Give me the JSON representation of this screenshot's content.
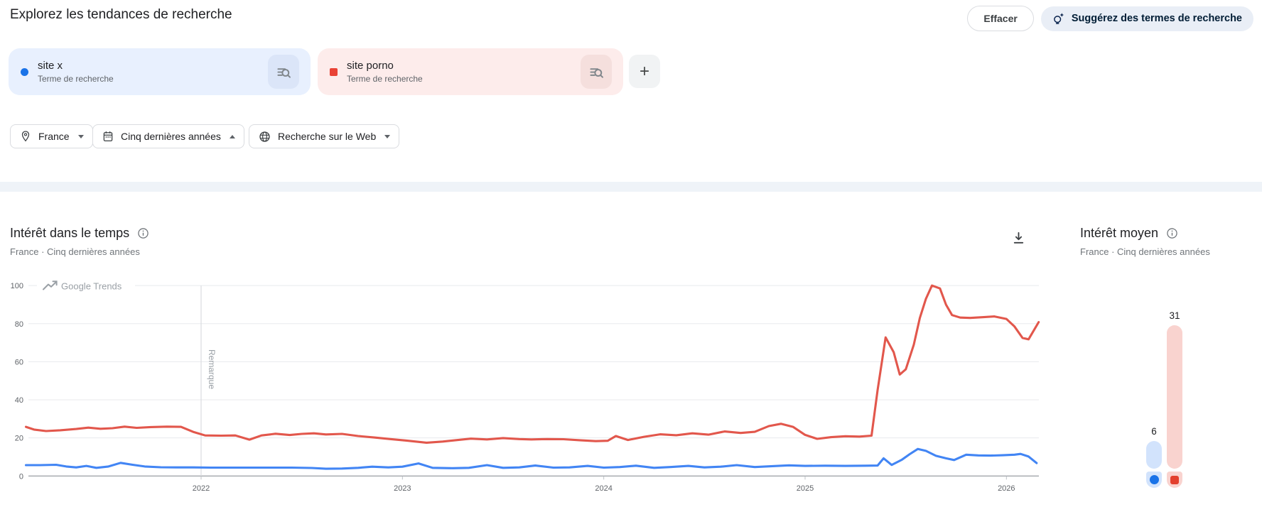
{
  "header": {
    "title": "Explorez les tendances de recherche",
    "clear_label": "Effacer",
    "suggest_label": "Suggérez des termes de recherche"
  },
  "terms": [
    {
      "label": "site x",
      "sublabel": "Terme de recherche",
      "marker_shape": "circle",
      "marker_color": "#1a73e8",
      "chip_bg": "#e8f0fe",
      "iconbox_bg": "#dbe5f8"
    },
    {
      "label": "site porno",
      "sublabel": "Terme de recherche",
      "marker_shape": "square",
      "marker_color": "#e94235",
      "chip_bg": "#fdeceb",
      "iconbox_bg": "#f5dfdd"
    }
  ],
  "add_term": {
    "label": "+"
  },
  "filters": [
    {
      "label": "France",
      "icon": "location-pin-icon",
      "arrow": "down"
    },
    {
      "label": "Cinq dernières années",
      "icon": "calendar-icon",
      "arrow": "up"
    },
    {
      "label": "Recherche sur le Web",
      "icon": "globe-icon",
      "arrow": "down"
    }
  ],
  "interest_over_time": {
    "title": "Intérêt dans le temps",
    "subtitle": "France · Cinq dernières années"
  },
  "average_interest": {
    "title": "Intérêt moyen",
    "subtitle": "France · Cinq dernières années",
    "bars": [
      {
        "term": "site x",
        "label": "6",
        "value": 6,
        "bar_color": "#d2e3fc",
        "marker_color": "#1a73e8",
        "marker_shape": "circle"
      },
      {
        "term": "site porno",
        "label": "31",
        "value": 31,
        "bar_color": "#f9d3cf",
        "marker_color": "#e3402e",
        "marker_shape": "square"
      }
    ]
  },
  "chart_data": [
    {
      "type": "line",
      "title": "Intérêt dans le temps",
      "watermark": "Google Trends",
      "xlabel": "",
      "ylabel": "",
      "ylim": [
        0,
        100
      ],
      "grid": true,
      "y_ticks": [
        0,
        20,
        40,
        60,
        80,
        100
      ],
      "x_ticks": [
        2022,
        2023,
        2024,
        2025,
        2026
      ],
      "x_range": [
        2021.13,
        2026.16
      ],
      "annotation": {
        "label": "Remarque",
        "x": 2022
      },
      "series": [
        {
          "name": "site x",
          "color": "#4285f4",
          "points": [
            [
              2021.13,
              5.7
            ],
            [
              2021.2,
              5.7
            ],
            [
              2021.28,
              5.9
            ],
            [
              2021.33,
              5.0
            ],
            [
              2021.38,
              4.5
            ],
            [
              2021.43,
              5.3
            ],
            [
              2021.48,
              4.3
            ],
            [
              2021.54,
              5.0
            ],
            [
              2021.6,
              6.9
            ],
            [
              2021.66,
              5.9
            ],
            [
              2021.72,
              5.0
            ],
            [
              2021.8,
              4.6
            ],
            [
              2021.88,
              4.5
            ],
            [
              2021.96,
              4.5
            ],
            [
              2022.05,
              4.4
            ],
            [
              2022.15,
              4.4
            ],
            [
              2022.25,
              4.4
            ],
            [
              2022.35,
              4.4
            ],
            [
              2022.45,
              4.4
            ],
            [
              2022.55,
              4.2
            ],
            [
              2022.62,
              3.8
            ],
            [
              2022.7,
              3.9
            ],
            [
              2022.78,
              4.3
            ],
            [
              2022.85,
              4.9
            ],
            [
              2022.93,
              4.5
            ],
            [
              2023.0,
              4.9
            ],
            [
              2023.08,
              6.6
            ],
            [
              2023.15,
              4.3
            ],
            [
              2023.25,
              4.1
            ],
            [
              2023.33,
              4.3
            ],
            [
              2023.42,
              5.7
            ],
            [
              2023.5,
              4.3
            ],
            [
              2023.58,
              4.5
            ],
            [
              2023.66,
              5.5
            ],
            [
              2023.75,
              4.4
            ],
            [
              2023.83,
              4.5
            ],
            [
              2023.92,
              5.3
            ],
            [
              2024.0,
              4.4
            ],
            [
              2024.08,
              4.7
            ],
            [
              2024.16,
              5.4
            ],
            [
              2024.25,
              4.3
            ],
            [
              2024.33,
              4.7
            ],
            [
              2024.42,
              5.3
            ],
            [
              2024.5,
              4.5
            ],
            [
              2024.58,
              4.9
            ],
            [
              2024.66,
              5.7
            ],
            [
              2024.75,
              4.7
            ],
            [
              2024.83,
              5.1
            ],
            [
              2024.92,
              5.6
            ],
            [
              2025.0,
              5.3
            ],
            [
              2025.1,
              5.4
            ],
            [
              2025.2,
              5.3
            ],
            [
              2025.3,
              5.4
            ],
            [
              2025.36,
              5.5
            ],
            [
              2025.39,
              9.3
            ],
            [
              2025.43,
              5.8
            ],
            [
              2025.48,
              8.5
            ],
            [
              2025.52,
              11.5
            ],
            [
              2025.56,
              14.2
            ],
            [
              2025.6,
              13.2
            ],
            [
              2025.65,
              10.6
            ],
            [
              2025.7,
              9.3
            ],
            [
              2025.74,
              8.4
            ],
            [
              2025.8,
              11.2
            ],
            [
              2025.86,
              10.8
            ],
            [
              2025.92,
              10.7
            ],
            [
              2025.98,
              10.9
            ],
            [
              2026.04,
              11.2
            ],
            [
              2026.07,
              11.6
            ],
            [
              2026.11,
              10.2
            ],
            [
              2026.15,
              6.8
            ]
          ]
        },
        {
          "name": "site porno",
          "color": "#e2574c",
          "points": [
            [
              2021.13,
              25.8
            ],
            [
              2021.17,
              24.4
            ],
            [
              2021.23,
              23.6
            ],
            [
              2021.3,
              24.0
            ],
            [
              2021.38,
              24.7
            ],
            [
              2021.44,
              25.4
            ],
            [
              2021.5,
              24.8
            ],
            [
              2021.56,
              25.1
            ],
            [
              2021.62,
              25.9
            ],
            [
              2021.68,
              25.3
            ],
            [
              2021.75,
              25.7
            ],
            [
              2021.83,
              25.9
            ],
            [
              2021.9,
              25.8
            ],
            [
              2021.96,
              23.2
            ],
            [
              2022.02,
              21.3
            ],
            [
              2022.1,
              21.2
            ],
            [
              2022.17,
              21.3
            ],
            [
              2022.24,
              19.1
            ],
            [
              2022.3,
              21.3
            ],
            [
              2022.37,
              22.2
            ],
            [
              2022.44,
              21.5
            ],
            [
              2022.5,
              22.1
            ],
            [
              2022.56,
              22.4
            ],
            [
              2022.62,
              21.8
            ],
            [
              2022.7,
              22.1
            ],
            [
              2022.78,
              21.0
            ],
            [
              2022.86,
              20.2
            ],
            [
              2022.94,
              19.4
            ],
            [
              2023.02,
              18.6
            ],
            [
              2023.12,
              17.5
            ],
            [
              2023.2,
              18.1
            ],
            [
              2023.28,
              19.0
            ],
            [
              2023.34,
              19.6
            ],
            [
              2023.42,
              19.2
            ],
            [
              2023.5,
              19.9
            ],
            [
              2023.58,
              19.4
            ],
            [
              2023.64,
              19.2
            ],
            [
              2023.72,
              19.4
            ],
            [
              2023.8,
              19.3
            ],
            [
              2023.88,
              18.8
            ],
            [
              2023.96,
              18.3
            ],
            [
              2024.02,
              18.5
            ],
            [
              2024.06,
              21.0
            ],
            [
              2024.12,
              18.9
            ],
            [
              2024.2,
              20.6
            ],
            [
              2024.28,
              21.9
            ],
            [
              2024.36,
              21.4
            ],
            [
              2024.44,
              22.4
            ],
            [
              2024.52,
              21.7
            ],
            [
              2024.6,
              23.4
            ],
            [
              2024.68,
              22.6
            ],
            [
              2024.75,
              23.2
            ],
            [
              2024.82,
              26.2
            ],
            [
              2024.88,
              27.4
            ],
            [
              2024.94,
              25.8
            ],
            [
              2025.0,
              21.6
            ],
            [
              2025.06,
              19.5
            ],
            [
              2025.13,
              20.4
            ],
            [
              2025.2,
              20.9
            ],
            [
              2025.27,
              20.7
            ],
            [
              2025.33,
              21.2
            ],
            [
              2025.36,
              45.0
            ],
            [
              2025.4,
              72.8
            ],
            [
              2025.44,
              65.0
            ],
            [
              2025.47,
              53.3
            ],
            [
              2025.5,
              56.0
            ],
            [
              2025.54,
              69.0
            ],
            [
              2025.57,
              83.0
            ],
            [
              2025.6,
              93.0
            ],
            [
              2025.63,
              100.0
            ],
            [
              2025.67,
              98.5
            ],
            [
              2025.7,
              90.0
            ],
            [
              2025.73,
              84.5
            ],
            [
              2025.77,
              83.2
            ],
            [
              2025.82,
              83.0
            ],
            [
              2025.88,
              83.4
            ],
            [
              2025.94,
              83.8
            ],
            [
              2026.0,
              82.5
            ],
            [
              2026.04,
              78.5
            ],
            [
              2026.08,
              72.5
            ],
            [
              2026.11,
              71.8
            ],
            [
              2026.16,
              80.8
            ]
          ]
        }
      ]
    },
    {
      "type": "bar",
      "title": "Intérêt moyen",
      "categories": [
        "site x",
        "site porno"
      ],
      "values": [
        6,
        31
      ],
      "ylim": [
        0,
        100
      ]
    }
  ],
  "colors": {
    "blue_line": "#4285f4",
    "red_line": "#e2574c",
    "blue_light": "#d2e3fc",
    "red_light": "#f9d3cf",
    "suggest_bg": "#e9eef6",
    "suggest_text": "#001d35",
    "grid": "#e8eaed",
    "axis": "#80868b",
    "muted_text": "#5f6368"
  }
}
